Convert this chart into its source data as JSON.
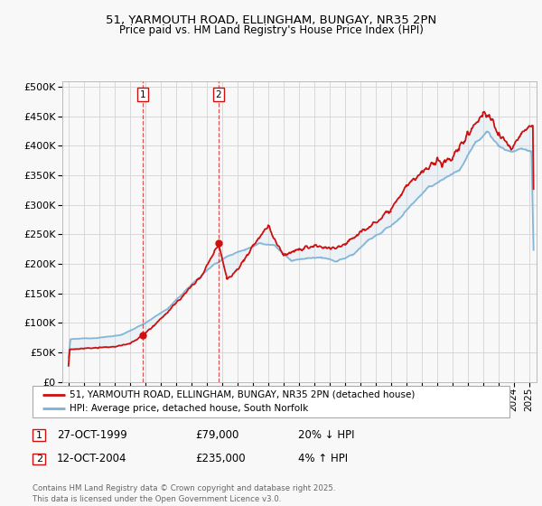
{
  "title1": "51, YARMOUTH ROAD, ELLINGHAM, BUNGAY, NR35 2PN",
  "title2": "Price paid vs. HM Land Registry's House Price Index (HPI)",
  "background_color": "#f8f8f8",
  "plot_bg_color": "#f8f8f8",
  "grid_color": "#d8d8d8",
  "red_color": "#cc1111",
  "blue_color": "#7ab0d4",
  "fill_color": "#c8dff0",
  "legend1": "51, YARMOUTH ROAD, ELLINGHAM, BUNGAY, NR35 2PN (detached house)",
  "legend2": "HPI: Average price, detached house, South Norfolk",
  "marker1_label": "1",
  "marker1_date": "27-OCT-1999",
  "marker1_price": "£79,000",
  "marker1_hpi": "20% ↓ HPI",
  "marker1_x": 1999.82,
  "marker1_y": 79000,
  "marker2_label": "2",
  "marker2_date": "12-OCT-2004",
  "marker2_price": "£235,000",
  "marker2_hpi": "4% ↑ HPI",
  "marker2_x": 2004.78,
  "marker2_y": 235000,
  "footer": "Contains HM Land Registry data © Crown copyright and database right 2025.\nThis data is licensed under the Open Government Licence v3.0.",
  "ylim": [
    0,
    510000
  ],
  "xlim_start": 1994.6,
  "xlim_end": 2025.5
}
